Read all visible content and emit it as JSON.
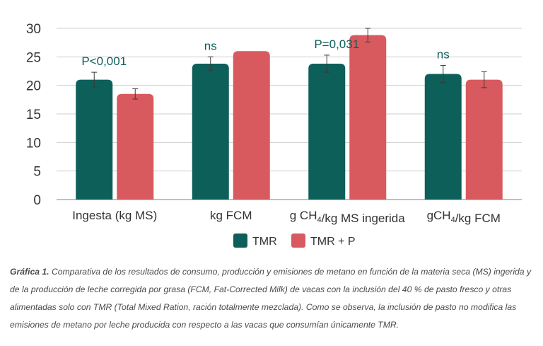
{
  "chart_data": {
    "type": "bar",
    "categories": [
      "Ingesta (kg MS)",
      "kg FCM",
      "g CH₄/kg MS ingerida",
      "gCH₄/kg FCM"
    ],
    "series": [
      {
        "name": "TMR",
        "values": [
          21.0,
          23.8,
          23.8,
          22.0
        ],
        "errors": [
          1.3,
          1.2,
          1.5,
          1.5
        ],
        "color": "#0d5f5a"
      },
      {
        "name": "TMR + P",
        "values": [
          18.5,
          26.0,
          28.8,
          21.0
        ],
        "errors": [
          0.9,
          0,
          1.2,
          1.4
        ],
        "color": "#d95a5e"
      }
    ],
    "annotations": [
      "P<0,001",
      "ns",
      "P=0,031",
      "ns"
    ],
    "ylim": [
      0,
      30
    ],
    "yticks": [
      0,
      5,
      10,
      15,
      20,
      25,
      30
    ],
    "grid": true,
    "legend": "bottom-center",
    "xlabel": "",
    "ylabel": "",
    "title": ""
  },
  "caption": {
    "label": "Gráfica 1.",
    "text": "Comparativa de los resultados de consumo, producción y emisiones de metano en función de la materia seca (MS) ingerida y de la producción de leche corregida por grasa (FCM, Fat-Corrected Milk) de vacas con la inclusión del 40 % de pasto fresco y otras alimentadas solo con TMR (Total Mixed Ration, ración totalmente mezclada). Como se observa, la inclusión de pasto no modifica las emisiones de metano por leche producida con respecto a las vacas que consumían únicamente TMR."
  }
}
